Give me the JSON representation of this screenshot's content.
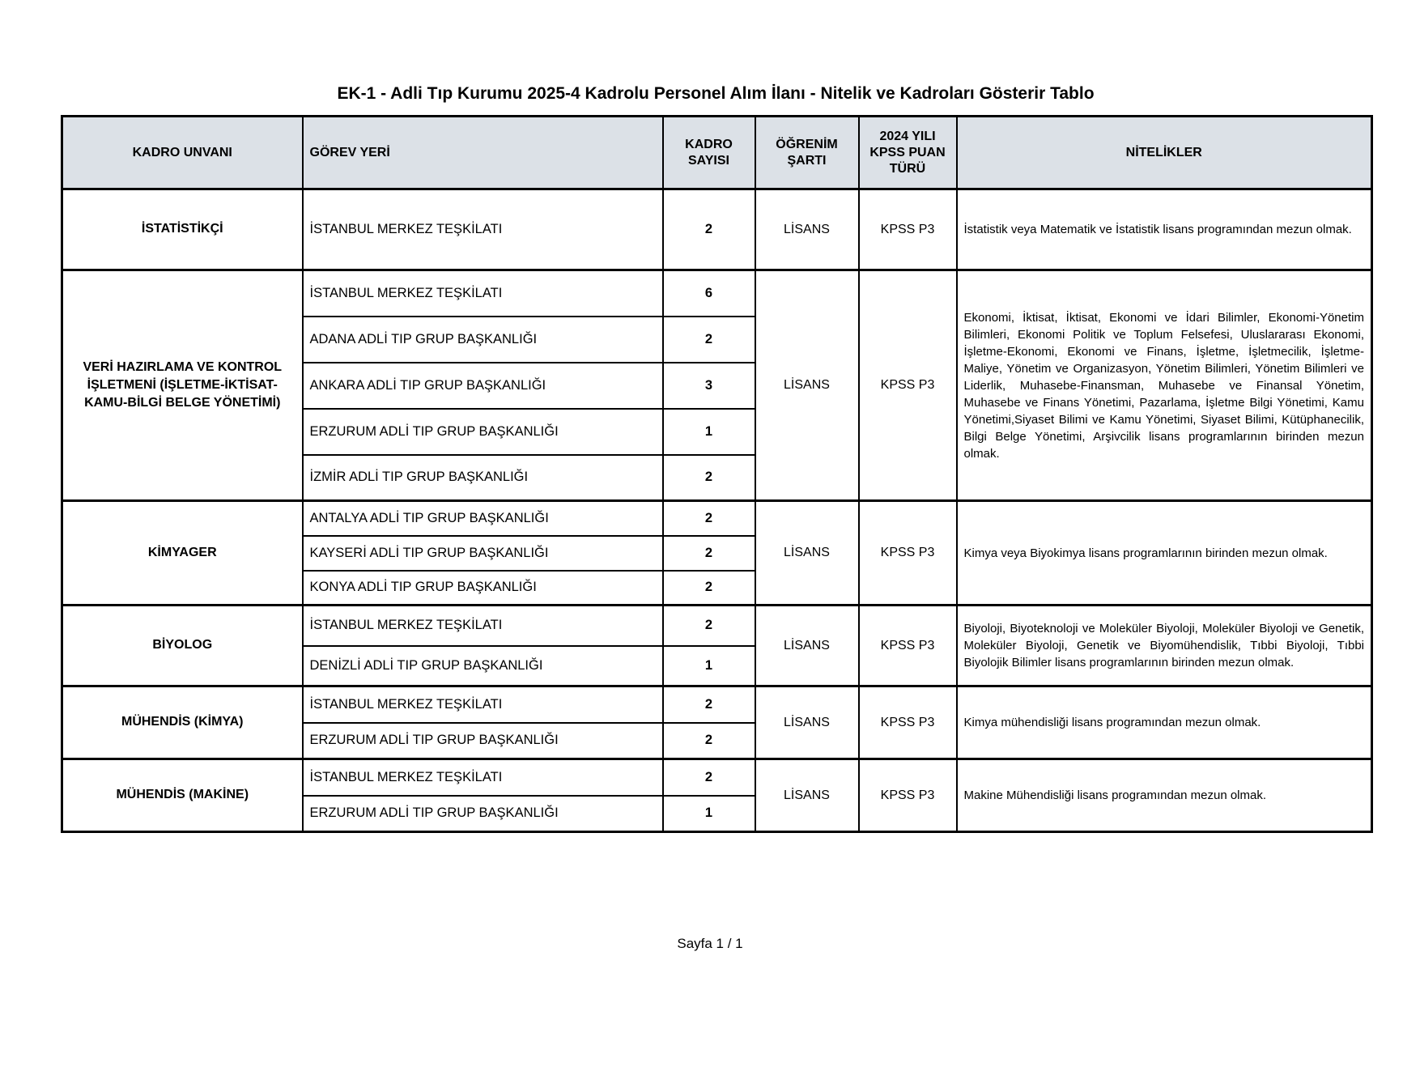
{
  "page": {
    "title": "EK-1 - Adli Tıp Kurumu 2025-4 Kadrolu Personel Alım İlanı - Nitelik ve Kadroları Gösterir Tablo",
    "footer": "Sayfa 1 / 1"
  },
  "colors": {
    "header_bg": "#dce1e7",
    "border": "#000000"
  },
  "table": {
    "headers": [
      "KADRO UNVANI",
      "GÖREV YERİ",
      "KADRO SAYISI",
      "ÖĞRENİM ŞARTI",
      "2024 YILI KPSS PUAN TÜRÜ",
      "NİTELİKLER"
    ],
    "groups": [
      {
        "kadro_unvani": "İSTATİSTİKÇİ",
        "locations": [
          {
            "gorev_yeri": "İSTANBUL MERKEZ TEŞKİLATI",
            "kadro_sayisi": "2"
          }
        ],
        "ogrenim_sarti": "LİSANS",
        "kpss_puan_turu": "KPSS P3",
        "nitelikler": "İstatistik veya Matematik ve İstatistik lisans programından mezun olmak."
      },
      {
        "kadro_unvani": "VERİ HAZIRLAMA VE KONTROL İŞLETMENİ (İŞLETME-İKTİSAT-KAMU-BİLGİ BELGE YÖNETİMİ)",
        "locations": [
          {
            "gorev_yeri": "İSTANBUL MERKEZ TEŞKİLATI",
            "kadro_sayisi": "6"
          },
          {
            "gorev_yeri": "ADANA ADLİ TIP GRUP BAŞKANLIĞI",
            "kadro_sayisi": "2"
          },
          {
            "gorev_yeri": "ANKARA ADLİ TIP GRUP BAŞKANLIĞI",
            "kadro_sayisi": "3"
          },
          {
            "gorev_yeri": "ERZURUM ADLİ TIP GRUP BAŞKANLIĞI",
            "kadro_sayisi": "1"
          },
          {
            "gorev_yeri": "İZMİR ADLİ TIP GRUP BAŞKANLIĞI",
            "kadro_sayisi": "2"
          }
        ],
        "ogrenim_sarti": "LİSANS",
        "kpss_puan_turu": "KPSS P3",
        "nitelikler": "Ekonomi, İktisat, İktisat, Ekonomi ve İdari Bilimler, Ekonomi-Yönetim Bilimleri, Ekonomi Politik ve Toplum Felsefesi, Uluslararası Ekonomi, İşletme-Ekonomi, Ekonomi ve Finans, İşletme, İşletmecilik, İşletme-Maliye, Yönetim ve Organizasyon, Yönetim Bilimleri, Yönetim Bilimleri ve Liderlik, Muhasebe-Finansman, Muhasebe ve Finansal Yönetim, Muhasebe ve Finans Yönetimi, Pazarlama, İşletme Bilgi Yönetimi, Kamu Yönetimi,Siyaset Bilimi ve Kamu Yönetimi, Siyaset Bilimi, Kütüphanecilik, Bilgi Belge Yönetimi, Arşivcilik lisans programlarının birinden mezun olmak."
      },
      {
        "kadro_unvani": "KİMYAGER",
        "locations": [
          {
            "gorev_yeri": "ANTALYA ADLİ TIP GRUP BAŞKANLIĞI",
            "kadro_sayisi": "2"
          },
          {
            "gorev_yeri": "KAYSERİ ADLİ TIP GRUP BAŞKANLIĞI",
            "kadro_sayisi": "2"
          },
          {
            "gorev_yeri": "KONYA ADLİ TIP GRUP BAŞKANLIĞI",
            "kadro_sayisi": "2"
          }
        ],
        "ogrenim_sarti": "LİSANS",
        "kpss_puan_turu": "KPSS P3",
        "nitelikler": "Kimya veya Biyokimya lisans programlarının birinden mezun olmak."
      },
      {
        "kadro_unvani": "BİYOLOG",
        "locations": [
          {
            "gorev_yeri": "İSTANBUL MERKEZ TEŞKİLATI",
            "kadro_sayisi": "2"
          },
          {
            "gorev_yeri": "DENİZLİ ADLİ TIP GRUP BAŞKANLIĞI",
            "kadro_sayisi": "1"
          }
        ],
        "ogrenim_sarti": "LİSANS",
        "kpss_puan_turu": "KPSS P3",
        "nitelikler": "Biyoloji, Biyoteknoloji ve Moleküler Biyoloji, Moleküler Biyoloji ve Genetik, Moleküler Biyoloji, Genetik ve Biyomühendislik, Tıbbi Biyoloji, Tıbbi Biyolojik Bilimler lisans programlarının birinden mezun olmak."
      },
      {
        "kadro_unvani": "MÜHENDİS (KİMYA)",
        "locations": [
          {
            "gorev_yeri": "İSTANBUL MERKEZ TEŞKİLATI",
            "kadro_sayisi": "2"
          },
          {
            "gorev_yeri": "ERZURUM ADLİ TIP GRUP BAŞKANLIĞI",
            "kadro_sayisi": "2"
          }
        ],
        "ogrenim_sarti": "LİSANS",
        "kpss_puan_turu": "KPSS P3",
        "nitelikler": "Kimya mühendisliği lisans programından mezun olmak."
      },
      {
        "kadro_unvani": "MÜHENDİS (MAKİNE)",
        "locations": [
          {
            "gorev_yeri": "İSTANBUL MERKEZ TEŞKİLATI",
            "kadro_sayisi": "2"
          },
          {
            "gorev_yeri": "ERZURUM ADLİ TIP GRUP BAŞKANLIĞI",
            "kadro_sayisi": "1"
          }
        ],
        "ogrenim_sarti": "LİSANS",
        "kpss_puan_turu": "KPSS P3",
        "nitelikler": "Makine Mühendisliği lisans programından mezun olmak."
      }
    ]
  }
}
